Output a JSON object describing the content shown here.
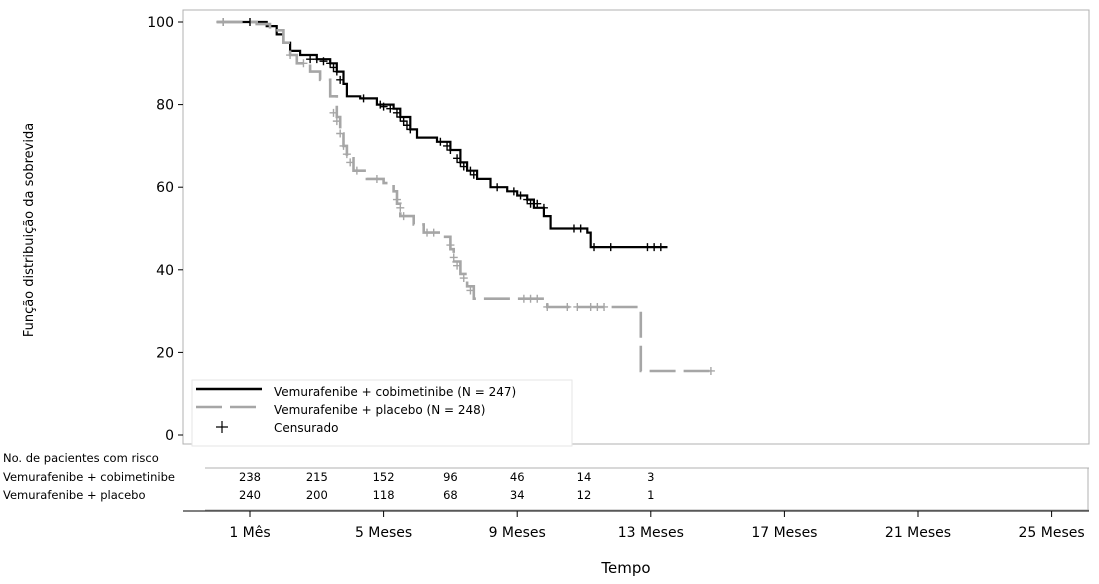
{
  "chart_data": {
    "type": "line",
    "subtype": "kaplan-meier",
    "title": "",
    "xlabel": "Tempo",
    "ylabel": "Função distribuição da sobrevida",
    "xlim": [
      0,
      26
    ],
    "ylim": [
      0,
      102
    ],
    "y_ticks": [
      0,
      20,
      40,
      60,
      80,
      100
    ],
    "x_ticks": [
      {
        "value": 1,
        "label": "1 Mês"
      },
      {
        "value": 5,
        "label": "5 Meses"
      },
      {
        "value": 9,
        "label": "9 Meses"
      },
      {
        "value": 13,
        "label": "13 Meses"
      },
      {
        "value": 17,
        "label": "17 Meses"
      },
      {
        "value": 21,
        "label": "21 Meses"
      },
      {
        "value": 25,
        "label": "25 Meses"
      }
    ],
    "grid": false,
    "legend_position": "bottom-left",
    "series": [
      {
        "name": "Vemurafenibe + cobimetinibe (N = 247)",
        "style": "solid",
        "color": "#000000",
        "steps": [
          [
            0.0,
            100
          ],
          [
            1.2,
            100
          ],
          [
            1.5,
            99
          ],
          [
            1.8,
            97
          ],
          [
            2.0,
            95
          ],
          [
            2.2,
            93
          ],
          [
            2.5,
            92
          ],
          [
            3.0,
            91
          ],
          [
            3.4,
            90
          ],
          [
            3.6,
            88
          ],
          [
            3.8,
            85
          ],
          [
            3.9,
            82
          ],
          [
            4.3,
            81.5
          ],
          [
            4.8,
            80
          ],
          [
            5.3,
            79
          ],
          [
            5.5,
            77
          ],
          [
            5.8,
            74
          ],
          [
            6.0,
            72
          ],
          [
            6.6,
            71
          ],
          [
            7.0,
            69
          ],
          [
            7.3,
            66
          ],
          [
            7.5,
            64
          ],
          [
            7.8,
            62
          ],
          [
            8.2,
            60
          ],
          [
            8.7,
            59
          ],
          [
            9.0,
            58
          ],
          [
            9.3,
            57
          ],
          [
            9.5,
            55
          ],
          [
            9.8,
            53
          ],
          [
            10.0,
            50
          ],
          [
            11.1,
            49
          ],
          [
            11.2,
            45.5
          ],
          [
            13.5,
            45.5
          ]
        ],
        "censored": [
          [
            0.2,
            100
          ],
          [
            1.0,
            100
          ],
          [
            2.8,
            91
          ],
          [
            3.0,
            91
          ],
          [
            3.2,
            90.5
          ],
          [
            3.4,
            90
          ],
          [
            3.5,
            89
          ],
          [
            3.6,
            88
          ],
          [
            3.7,
            86
          ],
          [
            4.4,
            81.5
          ],
          [
            4.9,
            80
          ],
          [
            5.0,
            79.5
          ],
          [
            5.2,
            79
          ],
          [
            5.4,
            78
          ],
          [
            5.5,
            77
          ],
          [
            5.6,
            76
          ],
          [
            5.7,
            75
          ],
          [
            5.8,
            74
          ],
          [
            6.7,
            71
          ],
          [
            6.9,
            70
          ],
          [
            7.0,
            69
          ],
          [
            7.2,
            67
          ],
          [
            7.3,
            66
          ],
          [
            7.4,
            65
          ],
          [
            7.6,
            64
          ],
          [
            7.7,
            63
          ],
          [
            8.4,
            60
          ],
          [
            8.9,
            59
          ],
          [
            9.1,
            58
          ],
          [
            9.3,
            57
          ],
          [
            9.4,
            56
          ],
          [
            9.6,
            56
          ],
          [
            9.8,
            55
          ],
          [
            10.7,
            50
          ],
          [
            10.9,
            50
          ],
          [
            11.3,
            45.5
          ],
          [
            11.8,
            45.5
          ],
          [
            12.9,
            45.5
          ],
          [
            13.1,
            45.5
          ],
          [
            13.3,
            45.5
          ]
        ]
      },
      {
        "name": "Vemurafenibe + placebo (N = 248)",
        "style": "dashed",
        "color": "#a6a6a6",
        "steps": [
          [
            0.0,
            100
          ],
          [
            1.2,
            99.5
          ],
          [
            1.6,
            98
          ],
          [
            2.0,
            95
          ],
          [
            2.2,
            92
          ],
          [
            2.4,
            90
          ],
          [
            2.8,
            88
          ],
          [
            3.1,
            86
          ],
          [
            3.4,
            82
          ],
          [
            3.6,
            77
          ],
          [
            3.7,
            73
          ],
          [
            3.8,
            70
          ],
          [
            3.9,
            67
          ],
          [
            4.1,
            64
          ],
          [
            4.5,
            62
          ],
          [
            5.0,
            61
          ],
          [
            5.3,
            59
          ],
          [
            5.4,
            56
          ],
          [
            5.5,
            53
          ],
          [
            5.9,
            51
          ],
          [
            6.2,
            49
          ],
          [
            6.8,
            48
          ],
          [
            7.0,
            45
          ],
          [
            7.1,
            42
          ],
          [
            7.3,
            39
          ],
          [
            7.5,
            36
          ],
          [
            7.7,
            33
          ],
          [
            9.9,
            31
          ],
          [
            12.7,
            31
          ],
          [
            12.7,
            15.5
          ],
          [
            14.8,
            15.5
          ]
        ],
        "censored": [
          [
            0.2,
            100
          ],
          [
            2.2,
            92
          ],
          [
            2.6,
            90
          ],
          [
            3.5,
            78
          ],
          [
            3.6,
            76
          ],
          [
            3.7,
            73
          ],
          [
            3.8,
            70
          ],
          [
            3.9,
            68
          ],
          [
            4.0,
            66
          ],
          [
            4.2,
            64
          ],
          [
            4.8,
            62
          ],
          [
            5.4,
            57
          ],
          [
            5.5,
            55
          ],
          [
            5.6,
            53
          ],
          [
            6.3,
            49
          ],
          [
            6.5,
            49
          ],
          [
            7.0,
            46
          ],
          [
            7.1,
            43
          ],
          [
            7.2,
            41
          ],
          [
            7.4,
            38
          ],
          [
            7.6,
            35
          ],
          [
            9.2,
            33
          ],
          [
            9.4,
            33
          ],
          [
            9.6,
            33
          ],
          [
            9.9,
            31
          ],
          [
            10.5,
            31
          ],
          [
            10.8,
            31
          ],
          [
            11.2,
            31
          ],
          [
            11.4,
            31
          ],
          [
            11.6,
            31
          ],
          [
            14.8,
            15.5
          ]
        ]
      }
    ],
    "legend": [
      {
        "label": "Vemurafenibe + cobimetinibe (N = 247)",
        "symbol": "solid"
      },
      {
        "label": "Vemurafenibe + placebo (N = 248)",
        "symbol": "dashed"
      },
      {
        "label": "Censurado",
        "symbol": "plus"
      }
    ],
    "risk_table": {
      "title": "No. de pacientes com risco",
      "times": [
        1,
        3,
        5,
        7,
        9,
        11,
        13
      ],
      "rows": [
        {
          "label": "Vemurafenibe + cobimetinibe",
          "values": [
            "238",
            "215",
            "152",
            "96",
            "46",
            "14",
            "3"
          ]
        },
        {
          "label": "Vemurafenibe + placebo",
          "values": [
            "240",
            "200",
            "118",
            "68",
            "34",
            "12",
            "1"
          ]
        }
      ]
    }
  }
}
